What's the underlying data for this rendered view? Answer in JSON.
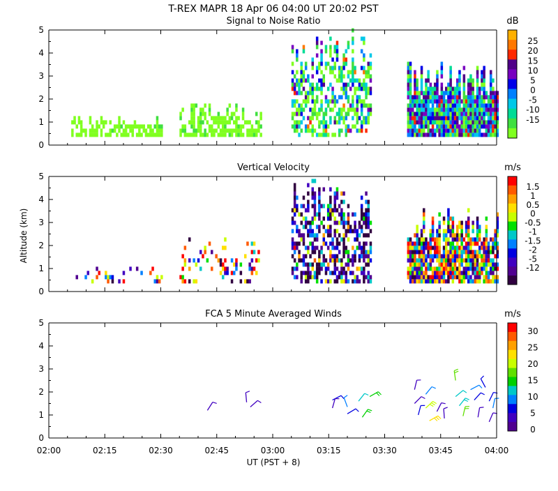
{
  "header": {
    "title": "T-REX  MAPR 18 Apr 06  04:00 UT  20:02  PST"
  },
  "x_axis": {
    "label": "UT  (PST + 8)",
    "ticks": [
      "02:00",
      "02:15",
      "02:30",
      "02:45",
      "03:00",
      "03:15",
      "03:30",
      "03:45",
      "04:00"
    ]
  },
  "y_axis": {
    "label": "Altitude (km)",
    "ticks": [
      "0",
      "1",
      "2",
      "3",
      "4",
      "5"
    ]
  },
  "chart_data": [
    {
      "type": "heatmap",
      "title": "Signal to Noise Ratio",
      "units": "dB",
      "x_range_minutes": [
        0,
        120
      ],
      "ylim": [
        0,
        5
      ],
      "colorbar_labels": [
        "25",
        "20",
        "15",
        "10",
        "5",
        "0",
        "-5",
        "-10",
        "-15"
      ],
      "colorbar_colors": [
        "#ffb000",
        "#ff7800",
        "#ff2800",
        "#500088",
        "#7800c0",
        "#0000e8",
        "#0080ff",
        "#00c8e8",
        "#00dc96",
        "#40e040",
        "#80ff20"
      ],
      "data_segments": [
        {
          "start_min": 6,
          "end_min": 30,
          "top_km": 1.2,
          "level": "low"
        },
        {
          "start_min": 35,
          "end_min": 57,
          "top_km": 1.8,
          "level": "low"
        },
        {
          "start_min": 65,
          "end_min": 86,
          "top_km": 5.0,
          "level": "medium"
        },
        {
          "start_min": 96,
          "end_min": 120,
          "top_km": 3.5,
          "level": "high"
        }
      ]
    },
    {
      "type": "heatmap",
      "title": "Vertical Velocity",
      "units": "m/s",
      "x_range_minutes": [
        0,
        120
      ],
      "ylim": [
        0,
        5
      ],
      "colorbar_labels": [
        "1.5",
        "1",
        "0.5",
        "0",
        "-0.5",
        "-1",
        "-1.5",
        "-2",
        "-5",
        "-12"
      ],
      "colorbar_colors": [
        "#ff0000",
        "#ff5a00",
        "#ffa000",
        "#ffe000",
        "#c8ff00",
        "#00e000",
        "#00c8c8",
        "#0080ff",
        "#0000e0",
        "#4000c0",
        "#500090",
        "#300040"
      ],
      "data_segments": [
        {
          "start_min": 6,
          "end_min": 30,
          "top_km": 1.0,
          "level": "sparse"
        },
        {
          "start_min": 35,
          "end_min": 57,
          "top_km": 2.4,
          "level": "sparse"
        },
        {
          "start_min": 65,
          "end_min": 86,
          "top_km": 5.0,
          "level": "medium"
        },
        {
          "start_min": 96,
          "end_min": 120,
          "top_km": 3.5,
          "level": "dense"
        }
      ]
    },
    {
      "type": "scatter",
      "title": "FCA 5 Minute Averaged Winds",
      "units": "m/s",
      "x_range_minutes": [
        0,
        120
      ],
      "ylim": [
        0,
        5
      ],
      "colorbar_labels": [
        "30",
        "25",
        "20",
        "15",
        "10",
        "5",
        "0"
      ],
      "colorbar_colors": [
        "#ff0000",
        "#ff5a00",
        "#ffa000",
        "#ffe000",
        "#c8ff00",
        "#60e000",
        "#00d000",
        "#00c8c8",
        "#0080ff",
        "#0000e0",
        "#4000c0",
        "#500090"
      ],
      "barbs": [
        {
          "t": 42.5,
          "alt": 1.2,
          "speed": 4
        },
        {
          "t": 53,
          "alt": 1.55,
          "speed": 3
        },
        {
          "t": 54,
          "alt": 1.35,
          "speed": 4
        },
        {
          "t": 76,
          "alt": 1.65,
          "speed": 6
        },
        {
          "t": 76,
          "alt": 1.3,
          "speed": 3
        },
        {
          "t": 80,
          "alt": 1.35,
          "speed": 8
        },
        {
          "t": 80,
          "alt": 1.05,
          "speed": 5
        },
        {
          "t": 83,
          "alt": 1.6,
          "speed": 11
        },
        {
          "t": 84,
          "alt": 0.9,
          "speed": 13
        },
        {
          "t": 86,
          "alt": 1.8,
          "speed": 14
        },
        {
          "t": 98,
          "alt": 2.1,
          "speed": 4
        },
        {
          "t": 98,
          "alt": 1.5,
          "speed": 2
        },
        {
          "t": 99,
          "alt": 1.0,
          "speed": 5
        },
        {
          "t": 101,
          "alt": 1.9,
          "speed": 9
        },
        {
          "t": 101,
          "alt": 1.3,
          "speed": 20
        },
        {
          "t": 102,
          "alt": 0.75,
          "speed": 22
        },
        {
          "t": 104,
          "alt": 1.15,
          "speed": 3
        },
        {
          "t": 106,
          "alt": 0.85,
          "speed": 4
        },
        {
          "t": 109,
          "alt": 2.5,
          "speed": 15
        },
        {
          "t": 109,
          "alt": 1.8,
          "speed": 10
        },
        {
          "t": 110,
          "alt": 1.4,
          "speed": 12
        },
        {
          "t": 111,
          "alt": 0.95,
          "speed": 17
        },
        {
          "t": 113,
          "alt": 2.1,
          "speed": 8
        },
        {
          "t": 114,
          "alt": 1.65,
          "speed": 6
        },
        {
          "t": 115,
          "alt": 0.9,
          "speed": 4
        },
        {
          "t": 117,
          "alt": 2.2,
          "speed": 5
        },
        {
          "t": 118,
          "alt": 1.6,
          "speed": 6
        },
        {
          "t": 118,
          "alt": 0.7,
          "speed": 3
        },
        {
          "t": 119,
          "alt": 1.3,
          "speed": 7
        }
      ]
    }
  ]
}
